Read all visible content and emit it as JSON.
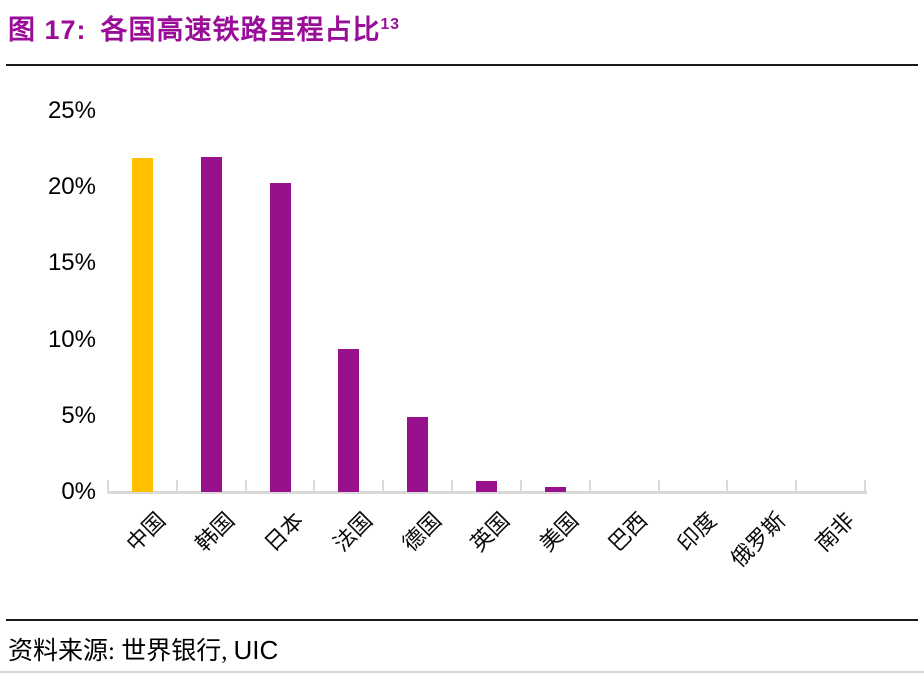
{
  "figure": {
    "label": "图 17:",
    "title": "各国高速铁路里程占比",
    "footnote": "13"
  },
  "source": {
    "label": "资料来源:",
    "text": "世界银行,",
    "org": "UIC"
  },
  "colors": {
    "title": "#990d98",
    "bar_default": "#98108c",
    "bar_highlight": "#ffc000",
    "axis": "#d9d9d9",
    "rule": "#1a1a1a",
    "text": "#000000"
  },
  "chart_data": {
    "type": "bar",
    "title": "各国高速铁路里程占比",
    "categories": [
      "中国",
      "韩国",
      "日本",
      "法国",
      "德国",
      "英国",
      "美国",
      "巴西",
      "印度",
      "俄罗斯",
      "南非"
    ],
    "values": [
      21.9,
      22.0,
      20.3,
      9.4,
      4.9,
      0.7,
      0.35,
      0,
      0,
      0,
      0
    ],
    "highlight_index": 0,
    "xlabel": "",
    "ylabel": "",
    "ylim": [
      0,
      25
    ],
    "ytick_step": 5,
    "ytick_labels": [
      "0%",
      "5%",
      "10%",
      "15%",
      "20%",
      "25%"
    ],
    "grid": false,
    "legend": false,
    "x_label_rotation_deg": 45
  }
}
